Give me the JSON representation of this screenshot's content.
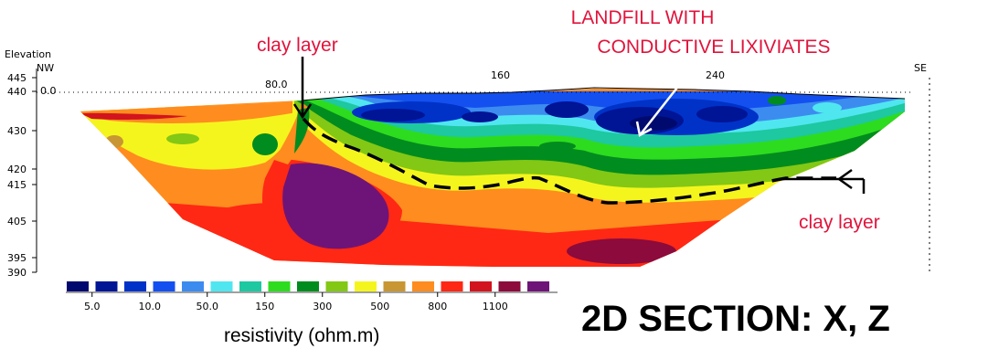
{
  "axis": {
    "elevation_label": "Elevation",
    "left_dir": "NW",
    "right_dir": "SE",
    "top_ticks": [
      "0.0",
      "80.0",
      "160",
      "240"
    ],
    "elevation_ticks": [
      {
        "label": "445",
        "value": 445
      },
      {
        "label": "440",
        "value": 440
      },
      {
        "label": "430",
        "value": 430
      },
      {
        "label": "420",
        "value": 420
      },
      {
        "label": "415",
        "value": 415
      },
      {
        "label": "405",
        "value": 405
      },
      {
        "label": "395",
        "value": 395
      },
      {
        "label": "390",
        "value": 390
      }
    ]
  },
  "annotations": {
    "clay_layer_top": "clay layer",
    "landfill_line1": "LANDFILL WITH",
    "landfill_line2": "CONDUCTIVE LIXIVIATES",
    "clay_layer_right": "clay layer"
  },
  "legend": {
    "swatch_colors": [
      "#000a6e",
      "#001496",
      "#0032c8",
      "#1450f0",
      "#3c8cf0",
      "#50e6f0",
      "#1ec8a0",
      "#2ddc1e",
      "#008c1e",
      "#82c814",
      "#f5f51e",
      "#c89632",
      "#ff8c1e",
      "#ff2814",
      "#d2141e",
      "#8c0a3c",
      "#6e1478"
    ],
    "tick_labels": [
      "5.0",
      "10.0",
      "50.0",
      "150",
      "300",
      "500",
      "800",
      "1100"
    ],
    "units": "resistivity (ohm.m)"
  },
  "section_title": "2D SECTION: X, Z",
  "colors": {
    "annotation_red": "#e0143c",
    "dark_blue": "#001496",
    "blue": "#1450f0",
    "cyan": "#50e6f0",
    "green": "#008c1e",
    "yellow": "#f5f51e",
    "orange": "#ff8c1e",
    "red": "#ff2814",
    "purple": "#6e1478"
  }
}
